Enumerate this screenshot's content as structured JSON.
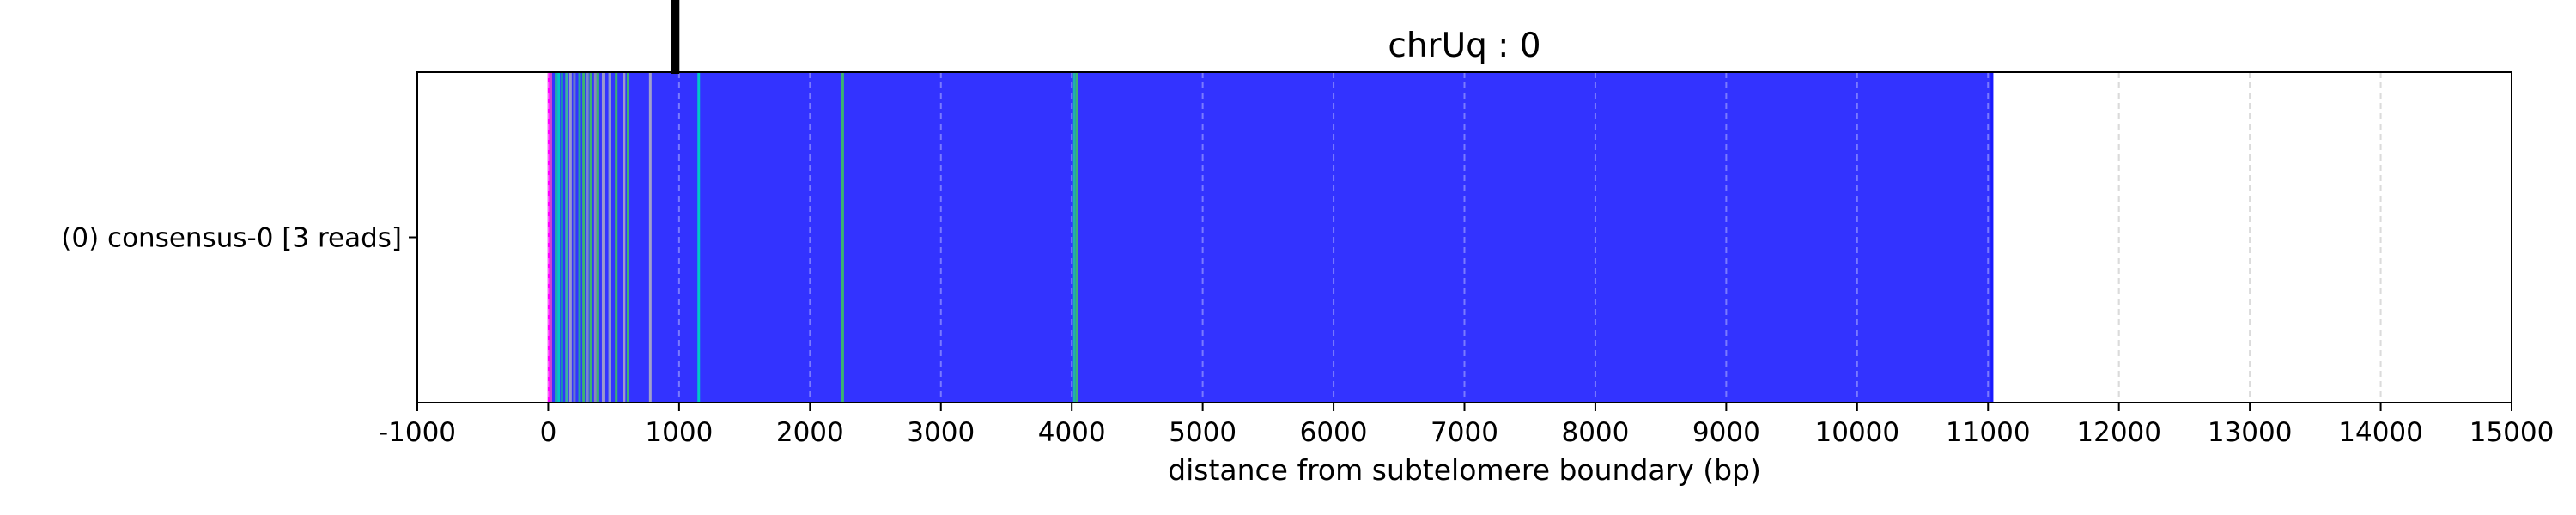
{
  "chart_data": {
    "type": "bar",
    "orientation": "horizontal",
    "title": "chrUq : 0",
    "xlabel": "distance from subtelomere boundary (bp)",
    "ylabel": "",
    "xlim": [
      -1000,
      15000
    ],
    "xticks": [
      "-1000",
      "0",
      "1000",
      "2000",
      "3000",
      "4000",
      "5000",
      "6000",
      "7000",
      "8000",
      "9000",
      "10000",
      "11000",
      "12000",
      "13000",
      "14000",
      "15000"
    ],
    "grid": "vertical dashed",
    "categories": [
      "(0) consensus-0 [3 reads]"
    ],
    "marker_position": 970,
    "series": [
      {
        "start": 0,
        "end": 11040,
        "fill_color": "#3333ff",
        "stripes": [
          {
            "x": 5,
            "color": "#ff00ff"
          },
          {
            "x": 20,
            "color": "#cc44cc"
          },
          {
            "x": 60,
            "color": "#22aaaa"
          },
          {
            "x": 80,
            "color": "#00c8c8"
          },
          {
            "x": 105,
            "color": "#1a90b0"
          },
          {
            "x": 140,
            "color": "#3cb0a0"
          },
          {
            "x": 170,
            "color": "#9999cc"
          },
          {
            "x": 200,
            "color": "#6677cc"
          },
          {
            "x": 240,
            "color": "#22a0a0"
          },
          {
            "x": 270,
            "color": "#3cb371"
          },
          {
            "x": 300,
            "color": "#7788cc"
          },
          {
            "x": 325,
            "color": "#3cb371"
          },
          {
            "x": 360,
            "color": "#8888bb"
          },
          {
            "x": 380,
            "color": "#3cb371"
          },
          {
            "x": 420,
            "color": "#9999cc"
          },
          {
            "x": 470,
            "color": "#8899cc"
          },
          {
            "x": 520,
            "color": "#3cb371"
          },
          {
            "x": 580,
            "color": "#9999cc"
          },
          {
            "x": 610,
            "color": "#3cb371"
          },
          {
            "x": 780,
            "color": "#a0a0cc"
          },
          {
            "x": 1150,
            "color": "#00c8c8"
          },
          {
            "x": 2250,
            "color": "#3cb371"
          },
          {
            "x": 4020,
            "color": "#20b2aa"
          },
          {
            "x": 4040,
            "color": "#3cb371"
          },
          {
            "x": 11030,
            "color": "#1a1aff"
          }
        ]
      }
    ]
  }
}
